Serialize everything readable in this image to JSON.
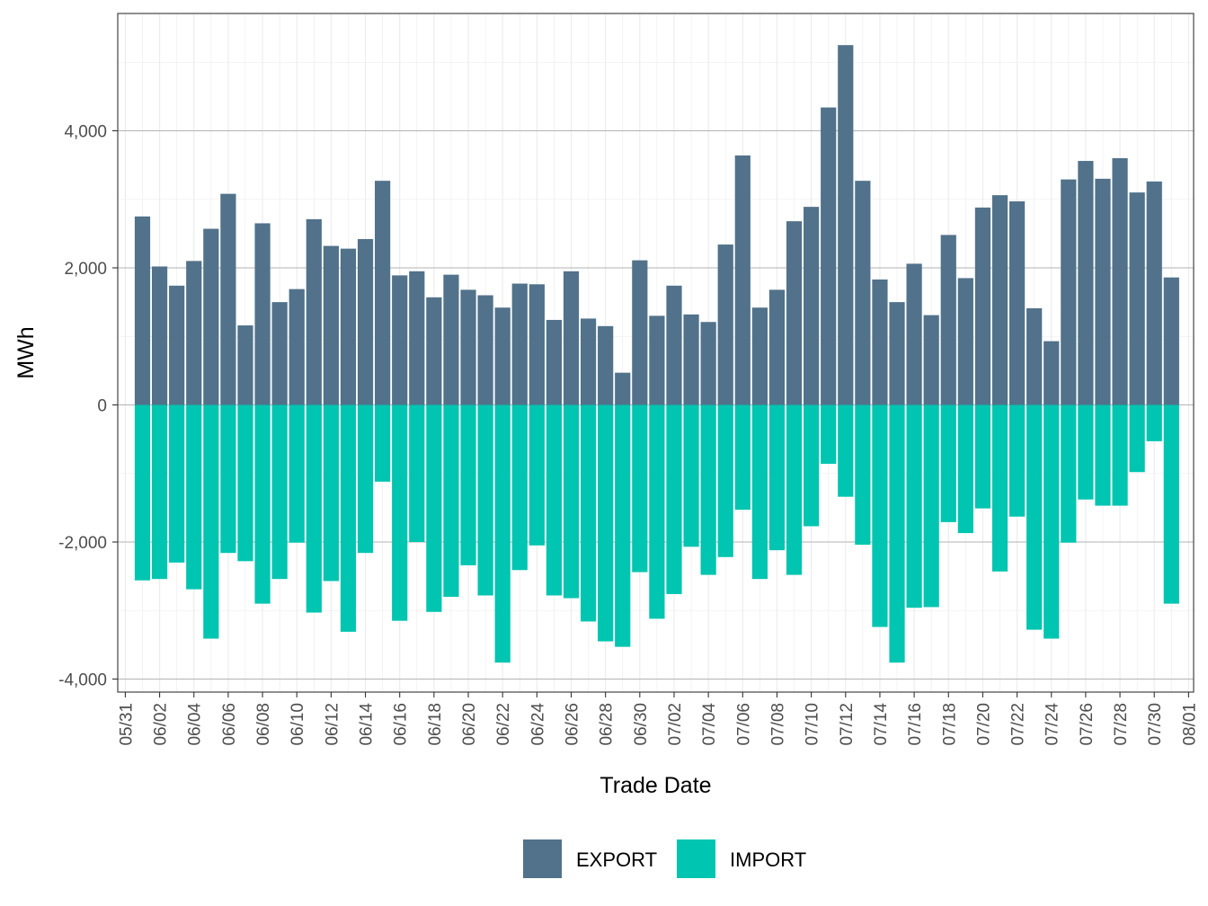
{
  "chart_data": {
    "type": "bar",
    "stacked": true,
    "xlabel": "Trade Date",
    "ylabel": "MWh",
    "ylim": [
      -4100,
      5600
    ],
    "y_ticks": [
      -4000,
      -2000,
      0,
      2000,
      4000
    ],
    "y_tick_labels": [
      "-4,000",
      "-2,000",
      "0",
      "2,000",
      "4,000"
    ],
    "x_tick_labels": [
      "05/31",
      "06/02",
      "06/04",
      "06/06",
      "06/08",
      "06/10",
      "06/12",
      "06/14",
      "06/16",
      "06/18",
      "06/20",
      "06/22",
      "06/24",
      "06/26",
      "06/28",
      "06/30",
      "07/02",
      "07/04",
      "07/06",
      "07/08",
      "07/10",
      "07/12",
      "07/14",
      "07/16",
      "07/18",
      "07/20",
      "07/22",
      "07/24",
      "07/26",
      "07/28",
      "07/30",
      "08/01"
    ],
    "categories": [
      "06/01",
      "06/02",
      "06/03",
      "06/04",
      "06/05",
      "06/06",
      "06/07",
      "06/08",
      "06/09",
      "06/10",
      "06/11",
      "06/12",
      "06/13",
      "06/14",
      "06/15",
      "06/16",
      "06/17",
      "06/18",
      "06/19",
      "06/20",
      "06/21",
      "06/22",
      "06/23",
      "06/24",
      "06/25",
      "06/26",
      "06/27",
      "06/28",
      "06/29",
      "06/30",
      "07/01",
      "07/02",
      "07/03",
      "07/04",
      "07/05",
      "07/06",
      "07/07",
      "07/08",
      "07/09",
      "07/10",
      "07/11",
      "07/12",
      "07/13",
      "07/14",
      "07/15",
      "07/16",
      "07/17",
      "07/18",
      "07/19",
      "07/20",
      "07/21",
      "07/22",
      "07/23",
      "07/24",
      "07/25",
      "07/26",
      "07/27",
      "07/28",
      "07/29",
      "07/30",
      "07/31"
    ],
    "series": [
      {
        "name": "EXPORT",
        "color": "#51728a",
        "values": [
          2750,
          2020,
          1740,
          2100,
          2570,
          3080,
          1160,
          2650,
          1500,
          1690,
          2710,
          2320,
          2280,
          2420,
          3270,
          1890,
          1950,
          1570,
          1900,
          1680,
          1600,
          1420,
          1770,
          1760,
          1240,
          1950,
          1260,
          1150,
          470,
          2110,
          1300,
          1740,
          1320,
          1210,
          2340,
          3640,
          1420,
          1680,
          2680,
          2890,
          4340,
          5250,
          3270,
          1830,
          1500,
          2060,
          1310,
          2480,
          1850,
          2880,
          3060,
          2970,
          1410,
          930,
          3290,
          3560,
          3300,
          3600,
          3100,
          3260,
          1860
        ]
      },
      {
        "name": "IMPORT",
        "color": "#00c5b0",
        "values": [
          -2560,
          -2540,
          -2300,
          -2690,
          -3410,
          -2160,
          -2280,
          -2900,
          -2540,
          -2010,
          -3030,
          -2570,
          -3310,
          -2160,
          -1120,
          -3150,
          -2000,
          -3020,
          -2800,
          -2340,
          -2780,
          -3760,
          -2410,
          -2050,
          -2780,
          -2820,
          -3160,
          -3450,
          -3530,
          -2440,
          -3120,
          -2760,
          -2070,
          -2480,
          -2220,
          -1530,
          -2540,
          -2120,
          -2480,
          -1770,
          -860,
          -1340,
          -2040,
          -3240,
          -3760,
          -2960,
          -2950,
          -1710,
          -1870,
          -1510,
          -2430,
          -1630,
          -3280,
          -3410,
          -2010,
          -1380,
          -1470,
          -1470,
          -980,
          -530,
          -2900
        ]
      }
    ],
    "grid": true,
    "legend_position": "bottom"
  }
}
